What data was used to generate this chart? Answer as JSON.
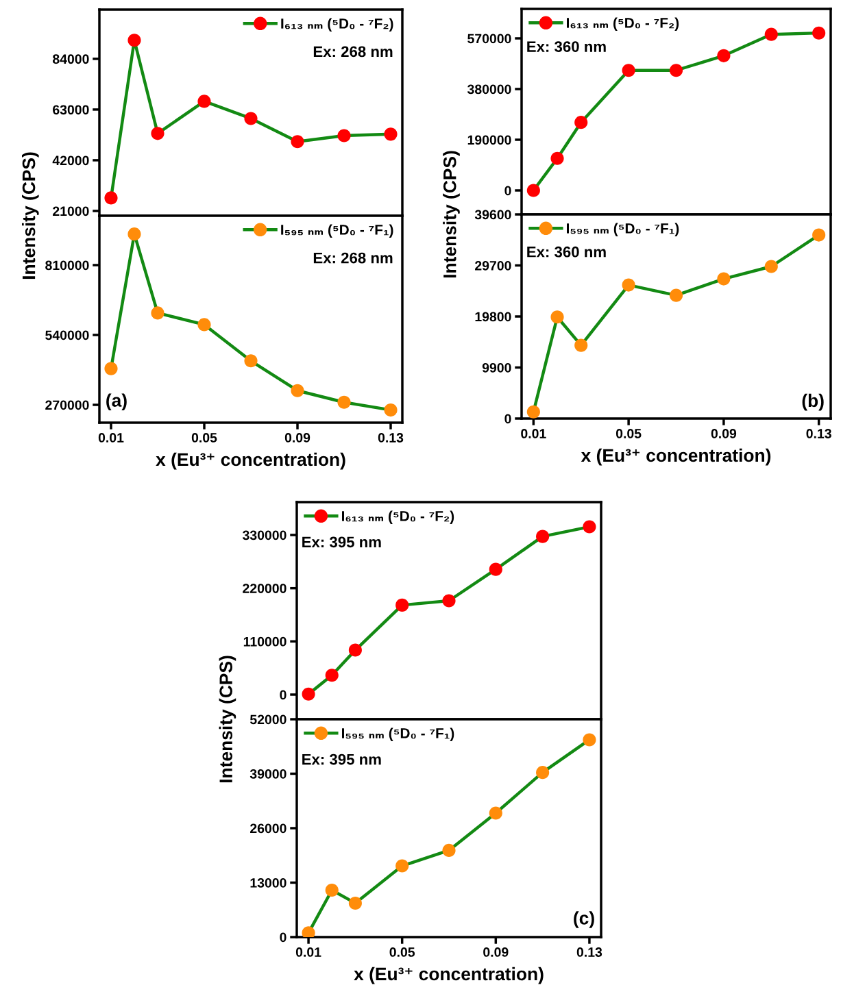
{
  "chart_data": [
    {
      "type": "line",
      "ylabel": "Intensity (CPS)",
      "x": [
        0.01,
        0.02,
        0.03,
        0.05,
        0.07,
        0.09,
        0.11,
        0.13
      ],
      "xlim": [
        0.005,
        0.135
      ],
      "xticks": [
        0.01,
        0.05,
        0.09,
        0.13
      ],
      "ylim": [
        19000,
        104400
      ],
      "yticks": [
        21000,
        42000,
        63000,
        84000
      ],
      "tick_labels": "y",
      "legend": "top right",
      "marker": "circle",
      "annotations": [
        "Ex: 268 nm"
      ],
      "series": [
        {
          "name": "I₆₁₃ ₙₘ (⁵D₀ - ⁷F₂)",
          "color": "#138a13",
          "colors": [
            "#ff0000",
            "#ff0000",
            "#ff0000",
            "#ff0000",
            "#ff0000",
            "#ff0000",
            "#ff0000",
            "#ff0000"
          ],
          "values": [
            26400,
            91700,
            53100,
            66400,
            59300,
            49700,
            52200,
            52800
          ]
        }
      ]
    },
    {
      "type": "line",
      "xlabel": "x (Eu³⁺ concentration)",
      "x": [
        0.01,
        0.02,
        0.03,
        0.05,
        0.07,
        0.09,
        0.11,
        0.13
      ],
      "xlim": [
        0.005,
        0.135
      ],
      "xticks": [
        0.01,
        0.05,
        0.09,
        0.13
      ],
      "ylim": [
        201200,
        1000600
      ],
      "yticks": [
        270000,
        540000,
        810000
      ],
      "legend": "top right",
      "marker": "circle",
      "annotations": [
        "Ex: 268 nm",
        "(a)"
      ],
      "series": [
        {
          "name": "I₅₉₅ ₙₘ (⁵D₀ - ⁷F₁)",
          "color": "#138a13",
          "colors": [
            "#ff8c0a",
            "#ff8c0a",
            "#ff8c0a",
            "#ff8c0a",
            "#ff8c0a",
            "#ff8c0a",
            "#ff8c0a",
            "#ff8c0a"
          ],
          "values": [
            410000,
            930000,
            625000,
            580000,
            440000,
            325000,
            280000,
            250000
          ]
        }
      ]
    },
    {
      "type": "line",
      "ylabel": "Intensity (CPS)",
      "x": [
        0.01,
        0.02,
        0.03,
        0.05,
        0.07,
        0.09,
        0.11,
        0.13
      ],
      "xlim": [
        0.005,
        0.135
      ],
      "xticks": [
        0.01,
        0.05,
        0.09,
        0.13
      ],
      "ylim": [
        -89900,
        680400
      ],
      "yticks": [
        0,
        190000,
        380000,
        570000
      ],
      "tick_labels": "y",
      "legend": "top left",
      "marker": "circle",
      "annotations": [
        "Ex: 360 nm"
      ],
      "series": [
        {
          "name": "I₆₁₃ ₙₘ (⁵D₀ - ⁷F₂)",
          "color": "#138a13",
          "colors": [
            "#ff0000",
            "#ff0000",
            "#ff0000",
            "#ff0000",
            "#ff0000",
            "#ff0000",
            "#ff0000",
            "#ff0000"
          ],
          "values": [
            0,
            120000,
            255000,
            450000,
            450000,
            505000,
            585000,
            590000
          ]
        }
      ]
    },
    {
      "type": "line",
      "xlabel": "x (Eu³⁺ concentration)",
      "x": [
        0.01,
        0.02,
        0.03,
        0.05,
        0.07,
        0.09,
        0.11,
        0.13
      ],
      "xlim": [
        0.005,
        0.135
      ],
      "xticks": [
        0.01,
        0.05,
        0.09,
        0.13
      ],
      "ylim": [
        0,
        39600
      ],
      "yticks": [
        0,
        9900,
        19800,
        29700,
        39600
      ],
      "legend": "top left",
      "marker": "circle",
      "annotations": [
        "Ex: 360 nm",
        "(b)"
      ],
      "series": [
        {
          "name": "I₅₉₅ ₙₘ (⁵D₀ - ⁷F₁)",
          "color": "#138a13",
          "colors": [
            "#ff8c0a",
            "#ff8c0a",
            "#ff8c0a",
            "#ff8c0a",
            "#ff8c0a",
            "#ff8c0a",
            "#ff8c0a",
            "#ff8c0a"
          ],
          "values": [
            1300,
            19700,
            14200,
            25900,
            23900,
            27100,
            29500,
            35600
          ]
        }
      ]
    },
    {
      "type": "line",
      "ylabel": "Intensity (CPS)",
      "x": [
        0.01,
        0.02,
        0.03,
        0.05,
        0.07,
        0.09,
        0.11,
        0.13
      ],
      "xlim": [
        0.005,
        0.135
      ],
      "xticks": [
        0.01,
        0.05,
        0.09,
        0.13
      ],
      "ylim": [
        -51000,
        398000
      ],
      "yticks": [
        0,
        110000,
        220000,
        330000
      ],
      "tick_labels": "y",
      "legend": "top left",
      "marker": "circle",
      "annotations": [
        "Ex: 395 nm"
      ],
      "series": [
        {
          "name": "I₆₁₃ ₙₘ (⁵D₀ - ⁷F₂)",
          "color": "#138a13",
          "colors": [
            "#ff0000",
            "#ff0000",
            "#ff0000",
            "#ff0000",
            "#ff0000",
            "#ff0000",
            "#ff0000",
            "#ff0000"
          ],
          "values": [
            1000,
            40000,
            92000,
            185000,
            194000,
            259000,
            327000,
            347000
          ]
        }
      ]
    },
    {
      "type": "line",
      "xlabel": "x (Eu³⁺ concentration)",
      "x": [
        0.01,
        0.02,
        0.03,
        0.05,
        0.07,
        0.09,
        0.11,
        0.13
      ],
      "xlim": [
        0.005,
        0.135
      ],
      "xticks": [
        0.01,
        0.05,
        0.09,
        0.13
      ],
      "ylim": [
        0,
        52000
      ],
      "yticks": [
        0,
        13000,
        26000,
        39000,
        52000
      ],
      "legend": "top left",
      "marker": "circle",
      "annotations": [
        "Ex: 395 nm",
        "(c)"
      ],
      "series": [
        {
          "name": "I₅₉₅ ₙₘ (⁵D₀ - ⁷F₁)",
          "color": "#138a13",
          "colors": [
            "#ff8c0a",
            "#ff8c0a",
            "#ff8c0a",
            "#ff8c0a",
            "#ff8c0a",
            "#ff8c0a",
            "#ff8c0a",
            "#ff8c0a"
          ],
          "values": [
            1000,
            11200,
            8100,
            17000,
            20700,
            29600,
            39300,
            47100
          ]
        }
      ]
    }
  ]
}
